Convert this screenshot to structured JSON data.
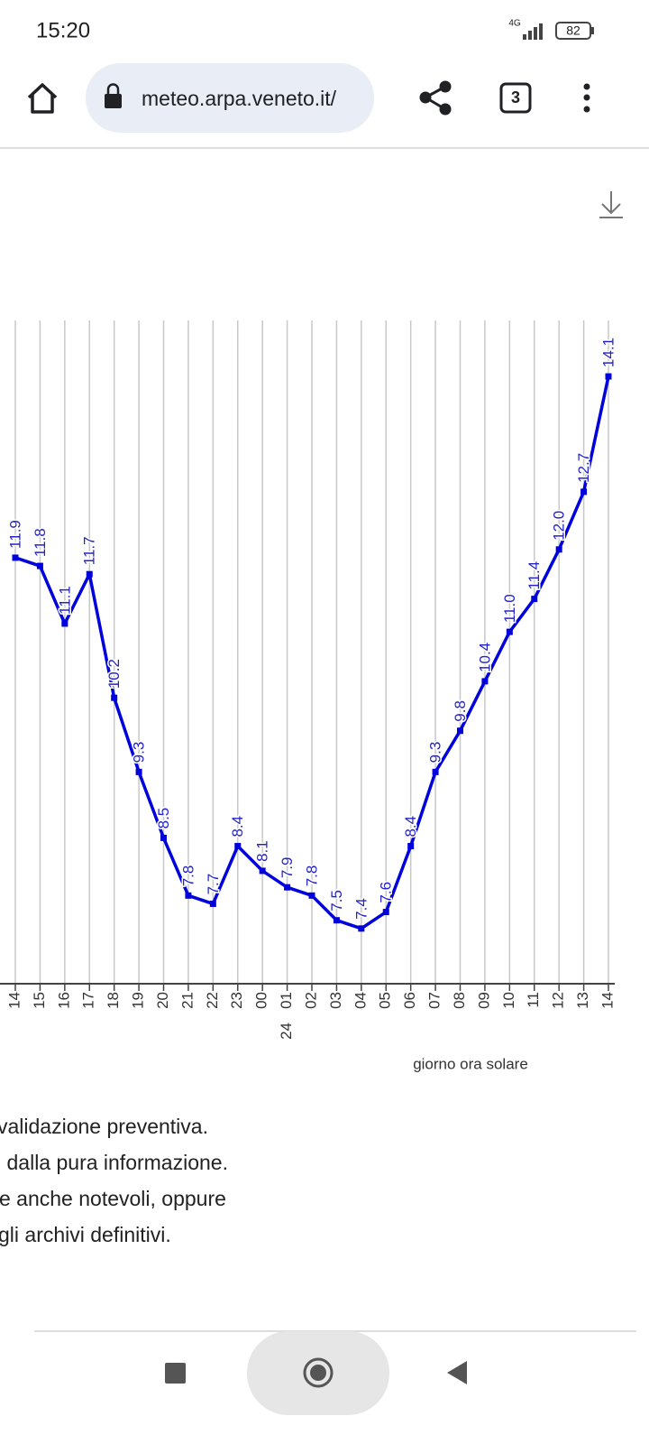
{
  "status_bar": {
    "time": "15:20",
    "network": "4G",
    "battery": "82"
  },
  "browser": {
    "url": "meteo.arpa.veneto.it/",
    "tab_count": "3"
  },
  "chart_data": {
    "type": "line",
    "categories": [
      "14",
      "15",
      "16",
      "17",
      "18",
      "19",
      "20",
      "21",
      "22",
      "23",
      "00",
      "01",
      "02",
      "03",
      "04",
      "05",
      "06",
      "07",
      "08",
      "09",
      "10",
      "11",
      "12",
      "13",
      "14"
    ],
    "day_labels": [
      null,
      null,
      null,
      null,
      null,
      null,
      null,
      null,
      null,
      null,
      null,
      "24",
      null,
      null,
      null,
      null,
      null,
      null,
      null,
      null,
      null,
      null,
      null,
      null,
      null
    ],
    "x_label": "giorno ora solare",
    "series": [
      {
        "color": "#0000dd",
        "values": [
          11.9,
          11.8,
          11.1,
          11.7,
          10.2,
          9.3,
          8.5,
          7.8,
          7.7,
          8.4,
          8.1,
          7.9,
          7.8,
          7.5,
          7.4,
          7.6,
          8.4,
          9.3,
          9.8,
          10.4,
          11.0,
          11.4,
          12.0,
          12.7,
          14.1
        ],
        "value_labels": [
          "11.9",
          "11.8",
          "11.1",
          "11.7",
          "10.2",
          "9.3",
          "8.5",
          "7.8",
          "7.7",
          "8.4",
          "8.1",
          "7.9",
          "7.8",
          "7.5",
          "7.4",
          "7.6",
          "8.4",
          "9.3",
          "9.8",
          "10.4",
          "11.0",
          "11.4",
          "12.0",
          "12.7",
          "14.1"
        ]
      }
    ],
    "ylim": [
      6.73,
      14.78
    ],
    "grid": true
  },
  "text": {
    "lines": [
      "validazione preventiva.",
      "i dalla pura informazione.",
      "e anche notevoli, oppure",
      "gli archivi definitivi."
    ]
  }
}
